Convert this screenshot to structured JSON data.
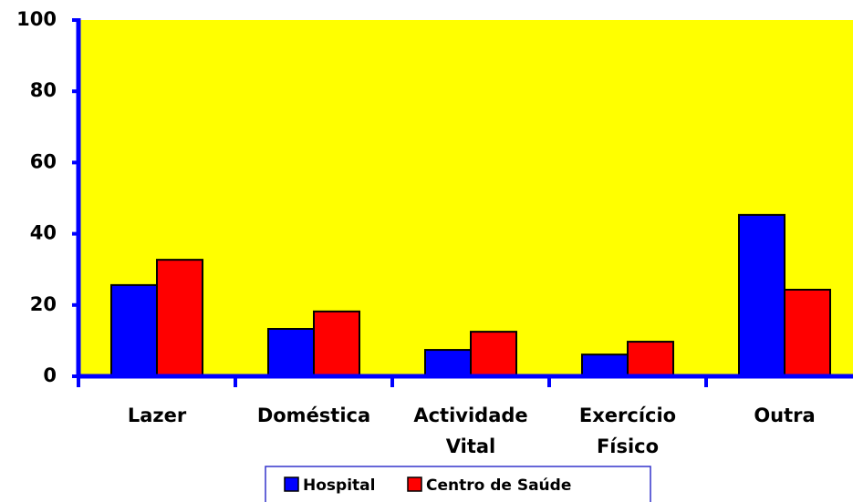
{
  "chart_data": {
    "type": "bar",
    "categories": [
      "Lazer",
      "Doméstica",
      "Actividade Vital",
      "Exercício Físico",
      "Outra"
    ],
    "series": [
      {
        "name": "Hospital",
        "color": "#0000ff",
        "values": [
          25.6,
          13.3,
          7.4,
          6.1,
          45.3
        ]
      },
      {
        "name": "Centro de Saúde",
        "color": "#ff0000",
        "values": [
          32.7,
          18.2,
          12.5,
          9.7,
          24.3
        ]
      }
    ],
    "ylim": [
      0,
      100
    ],
    "yticks": [
      0,
      20,
      40,
      60,
      80,
      100
    ],
    "background": "#ffff00",
    "axis_color": "#0000ff"
  }
}
